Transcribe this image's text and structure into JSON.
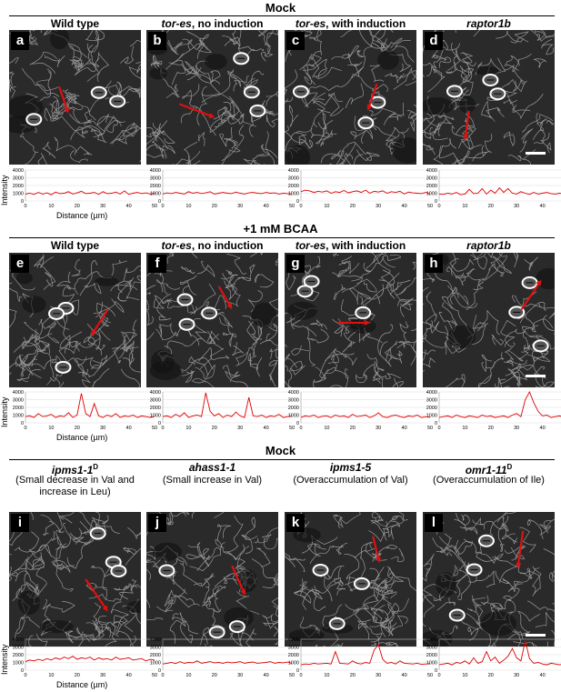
{
  "sections": [
    {
      "title": "Mock"
    },
    {
      "title": "+1 mM BCAA"
    },
    {
      "title": "Mock"
    }
  ],
  "rows": [
    {
      "panels": [
        {
          "letter": "a",
          "title_italic": "",
          "title_rest": "Wild type",
          "subtitle": "",
          "arrow": [
            0.38,
            0.42,
            0.45,
            0.62
          ]
        },
        {
          "letter": "b",
          "title_italic": "tor-es",
          "title_rest": ", no induction",
          "subtitle": "",
          "arrow": [
            0.25,
            0.55,
            0.52,
            0.65
          ]
        },
        {
          "letter": "c",
          "title_italic": "tor-es",
          "title_rest": ", with induction",
          "subtitle": "",
          "arrow": [
            0.7,
            0.4,
            0.63,
            0.6
          ]
        },
        {
          "letter": "d",
          "title_italic": "raptor1b",
          "title_rest": "",
          "subtitle": "",
          "arrow": [
            0.35,
            0.6,
            0.32,
            0.82
          ]
        }
      ],
      "profiles": [
        [
          900,
          1000,
          850,
          1100,
          900,
          1050,
          800,
          1150,
          950,
          1000,
          1200,
          900,
          1050,
          1250,
          950,
          1000,
          1100,
          850,
          1200,
          950,
          1000,
          1150,
          900,
          1300,
          850,
          1000,
          1100,
          950,
          1050,
          900,
          1000
        ],
        [
          900,
          1050,
          950,
          1100,
          1000,
          900,
          1200,
          1000,
          1100,
          950,
          1050,
          1200,
          900,
          1000,
          1100,
          1000,
          950,
          1150,
          1000,
          900,
          1050,
          1100,
          1000,
          950,
          1100,
          1000,
          1050,
          900,
          1000,
          950,
          900
        ],
        [
          1200,
          1400,
          1300,
          1100,
          1250,
          1150,
          1300,
          1000,
          1200,
          1100,
          1350,
          1050,
          1200,
          1300,
          1100,
          1400,
          1000,
          1250,
          1150,
          1300,
          1000,
          1200,
          1100,
          1250,
          900,
          1150,
          1050,
          1000,
          950,
          1100,
          900
        ],
        [
          900,
          850,
          1000,
          900,
          1100,
          800,
          900,
          1500,
          950,
          1000,
          1600,
          900,
          1400,
          1000,
          1700,
          1100,
          1600,
          1000,
          900,
          1200,
          1000,
          850,
          1100,
          900,
          1000,
          1100,
          950,
          900,
          1000,
          850,
          1100
        ]
      ]
    },
    {
      "panels": [
        {
          "letter": "e",
          "title_italic": "",
          "title_rest": "Wild type",
          "subtitle": "",
          "arrow": [
            0.75,
            0.42,
            0.62,
            0.62
          ]
        },
        {
          "letter": "f",
          "title_italic": "tor-es",
          "title_rest": ", no induction",
          "subtitle": "",
          "arrow": [
            0.55,
            0.25,
            0.65,
            0.42
          ]
        },
        {
          "letter": "g",
          "title_italic": "tor-es",
          "title_rest": ", with induction",
          "subtitle": "",
          "arrow": [
            0.4,
            0.52,
            0.65,
            0.52
          ]
        },
        {
          "letter": "h",
          "title_italic": "raptor1b",
          "title_rest": "",
          "subtitle": "",
          "arrow": [
            0.75,
            0.42,
            0.9,
            0.2
          ]
        }
      ],
      "profiles": [
        [
          800,
          900,
          700,
          1200,
          800,
          900,
          1100,
          700,
          900,
          800,
          1300,
          700,
          1000,
          3800,
          1200,
          800,
          2500,
          900,
          700,
          1000,
          800,
          1200,
          700,
          900,
          800,
          1000,
          700,
          900,
          800,
          700,
          800
        ],
        [
          800,
          900,
          700,
          1100,
          800,
          1300,
          700,
          900,
          1000,
          800,
          3900,
          1500,
          900,
          1200,
          700,
          1000,
          800,
          1400,
          900,
          700,
          3300,
          900,
          800,
          1000,
          700,
          900,
          800,
          1100,
          700,
          800,
          900
        ],
        [
          700,
          900,
          800,
          1000,
          700,
          850,
          900,
          700,
          1000,
          800,
          900,
          700,
          1100,
          800,
          900,
          1000,
          700,
          900,
          1300,
          800,
          700,
          900,
          1000,
          800,
          700,
          900,
          800,
          1000,
          700,
          800,
          700
        ],
        [
          700,
          800,
          900,
          700,
          1000,
          800,
          700,
          900,
          800,
          700,
          1000,
          800,
          900,
          700,
          800,
          900,
          700,
          1000,
          1200,
          800,
          3000,
          4000,
          2600,
          1500,
          900,
          1000,
          700,
          800,
          900,
          700,
          800
        ]
      ]
    },
    {
      "panels": [
        {
          "letter": "i",
          "title_italic": "ipms1-1",
          "sup": "D",
          "title_rest": "",
          "subtitle": "(Small decrease in Val and increase in Leu)",
          "arrow": [
            0.58,
            0.5,
            0.75,
            0.74
          ]
        },
        {
          "letter": "j",
          "title_italic": "ahass1-1",
          "title_rest": "",
          "subtitle": "(Small increase in Val)",
          "arrow": [
            0.65,
            0.4,
            0.75,
            0.62
          ]
        },
        {
          "letter": "k",
          "title_italic": "ipms1-5",
          "title_rest": "",
          "subtitle": "(Overaccumulation of Val)",
          "arrow": [
            0.67,
            0.18,
            0.72,
            0.38
          ]
        },
        {
          "letter": "l",
          "title_italic": "omr1-11",
          "sup": "D",
          "title_rest": "",
          "subtitle": "(Overaccumulation of Ile)",
          "arrow": [
            0.76,
            0.14,
            0.72,
            0.42
          ]
        }
      ],
      "profiles": [
        [
          1100,
          1300,
          1200,
          1400,
          1250,
          1500,
          1300,
          1600,
          1400,
          1700,
          1500,
          1800,
          1400,
          1600,
          1500,
          1700,
          1300,
          1600,
          1400,
          1500,
          1300,
          1700,
          1400,
          1500,
          1600,
          1300,
          1400,
          1500,
          1200,
          1400,
          1300
        ],
        [
          800,
          900,
          1000,
          850,
          1100,
          900,
          1000,
          950,
          1200,
          900,
          1000,
          1100,
          950,
          1000,
          900,
          1050,
          950,
          1000,
          1100,
          900,
          1000,
          1050,
          900,
          950,
          1000,
          1100,
          900,
          1000,
          950,
          1050,
          900
        ],
        [
          700,
          800,
          750,
          900,
          800,
          850,
          900,
          800,
          2400,
          900,
          850,
          800,
          1200,
          900,
          800,
          1000,
          900,
          2600,
          3300,
          1400,
          900,
          1000,
          800,
          1200,
          900,
          850,
          800,
          900,
          750,
          800,
          850
        ],
        [
          700,
          800,
          900,
          700,
          1000,
          900,
          1200,
          800,
          1600,
          900,
          1100,
          2400,
          1200,
          1700,
          900,
          1300,
          1800,
          2800,
          1600,
          1200,
          3800,
          1500,
          900,
          1000,
          800,
          700,
          900,
          800,
          700,
          800,
          700
        ]
      ]
    }
  ],
  "plot_axes": {
    "y_ticks": [
      "0",
      "1000",
      "2000",
      "3000",
      "4000"
    ],
    "x_ticks": [
      "0",
      "10",
      "20",
      "30",
      "40",
      "50"
    ],
    "ylabel": "Intensity",
    "xlabel": "Distance (µm)",
    "ylim": [
      0,
      4000
    ],
    "xlim": [
      0,
      50
    ],
    "line_color": "#e00000"
  },
  "colors": {
    "arrow": "#e01010",
    "stomata": "#ffffff",
    "background": "#2a2a2a"
  }
}
